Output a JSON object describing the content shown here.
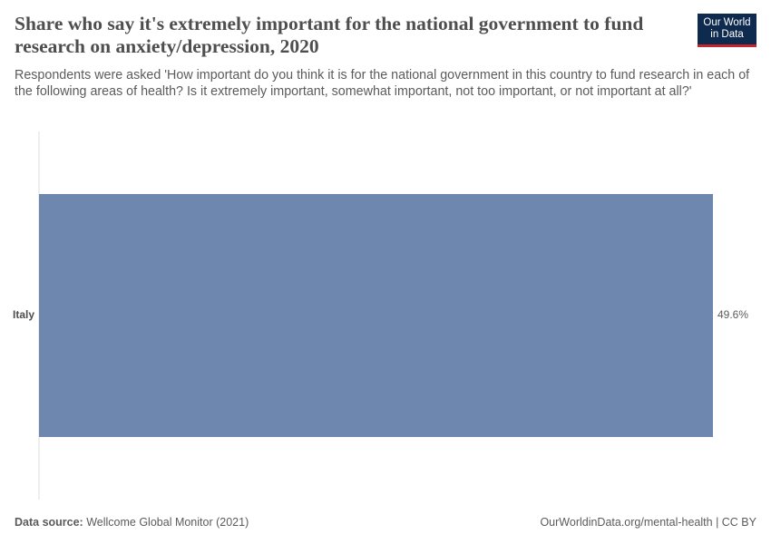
{
  "logo": [
    "Our World",
    "in Data"
  ],
  "footer": {
    "source_label": "Data source:",
    "source": "Wellcome Global Monitor (2021)",
    "url": "OurWorldinData.org/mental-health | CC BY"
  },
  "chart_data": {
    "type": "bar",
    "orientation": "horizontal",
    "title": "Share who say it's extremely important for the national government to fund research on anxiety/depression, 2020",
    "subtitle": "Respondents were asked 'How important do you think it is for the national government in this country to fund research in each of the following areas of health? Is it extremely important, somewhat important, not too important, or not important at all?'",
    "categories": [
      "Italy"
    ],
    "values": [
      49.6
    ],
    "value_labels": [
      "49.6%"
    ],
    "color": "#6d87ae"
  }
}
